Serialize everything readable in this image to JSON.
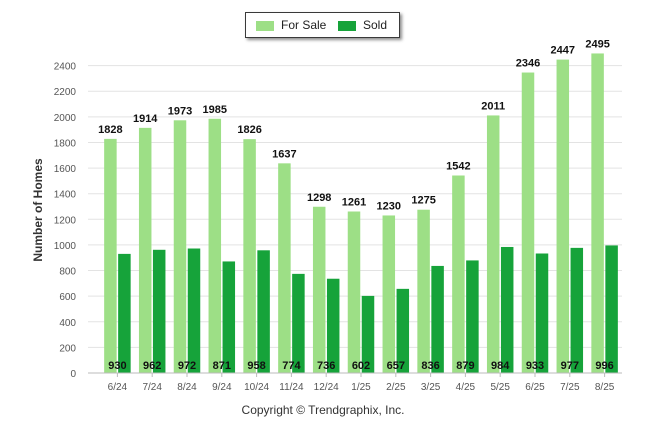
{
  "chart_data": {
    "type": "bar",
    "categories": [
      "6/24",
      "7/24",
      "8/24",
      "9/24",
      "10/24",
      "11/24",
      "12/24",
      "1/25",
      "2/25",
      "3/25",
      "4/25",
      "5/25",
      "6/25",
      "7/25",
      "8/25"
    ],
    "series": [
      {
        "name": "For Sale",
        "values": [
          1828,
          1914,
          1973,
          1985,
          1826,
          1637,
          1298,
          1261,
          1230,
          1275,
          1542,
          2011,
          2346,
          2447,
          2495
        ],
        "color": "#9ddf86"
      },
      {
        "name": "Sold",
        "values": [
          930,
          962,
          972,
          871,
          958,
          774,
          736,
          602,
          657,
          836,
          879,
          984,
          933,
          977,
          996
        ],
        "color": "#16a33a"
      }
    ],
    "ylabel": "Number of Homes",
    "xlabel": "",
    "ylim": [
      0,
      2600
    ],
    "yticks": [
      0,
      200,
      400,
      600,
      800,
      1000,
      1200,
      1400,
      1600,
      1800,
      2000,
      2200,
      2400
    ],
    "grid": true,
    "legend_position": "top-center"
  },
  "legend": {
    "for_sale_label": "For Sale",
    "sold_label": "Sold"
  },
  "footer": {
    "copyright": "Copyright © Trendgraphix, Inc."
  }
}
